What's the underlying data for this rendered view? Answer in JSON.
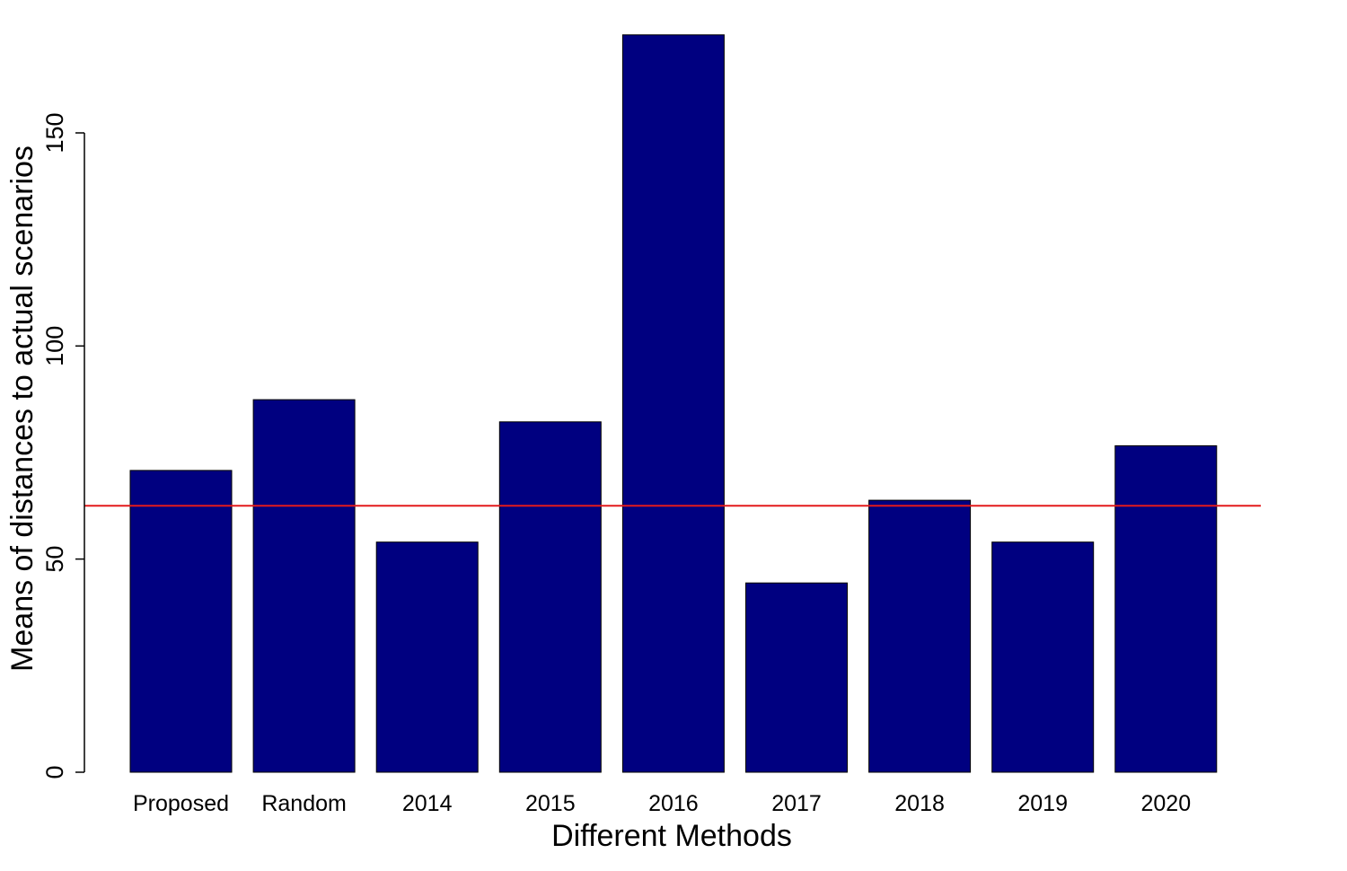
{
  "chart_data": {
    "type": "bar",
    "title": "",
    "xlabel": "Different Methods",
    "ylabel": "Means of distances to actual scenarios",
    "categories": [
      "Proposed",
      "Random",
      "2014",
      "2015",
      "2016",
      "2017",
      "2018",
      "2019",
      "2020"
    ],
    "values": [
      70.8,
      87.4,
      54.0,
      82.2,
      173.0,
      44.4,
      63.8,
      54.0,
      76.6
    ],
    "ylim": [
      0,
      175
    ],
    "yticks": [
      0,
      50,
      100,
      150
    ],
    "ytick_labels": [
      "0",
      "50",
      "100",
      "150"
    ],
    "reference_line": {
      "y": 62.5,
      "color": "#e31a1c"
    },
    "bar_color": "#000080",
    "grid": false,
    "legend": "none"
  }
}
